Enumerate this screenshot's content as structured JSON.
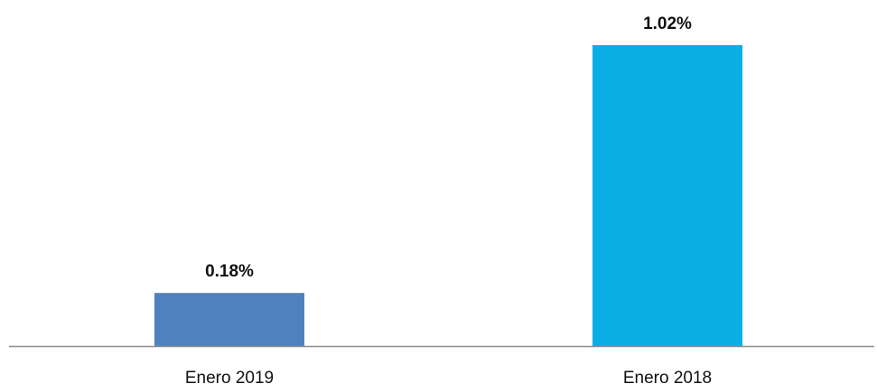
{
  "chart_data": {
    "type": "bar",
    "categories": [
      "Enero 2019",
      "Enero 2018"
    ],
    "values": [
      0.18,
      1.02
    ],
    "value_labels": [
      "0.18%",
      "1.02%"
    ],
    "unit": "%",
    "colors": [
      "#4f81bd",
      "#0aaee4"
    ],
    "axis_color": "#8c8c8c",
    "title": "",
    "xlabel": "",
    "ylabel": "",
    "ylim": [
      0,
      1.02
    ],
    "grid": false,
    "legend": "none"
  }
}
